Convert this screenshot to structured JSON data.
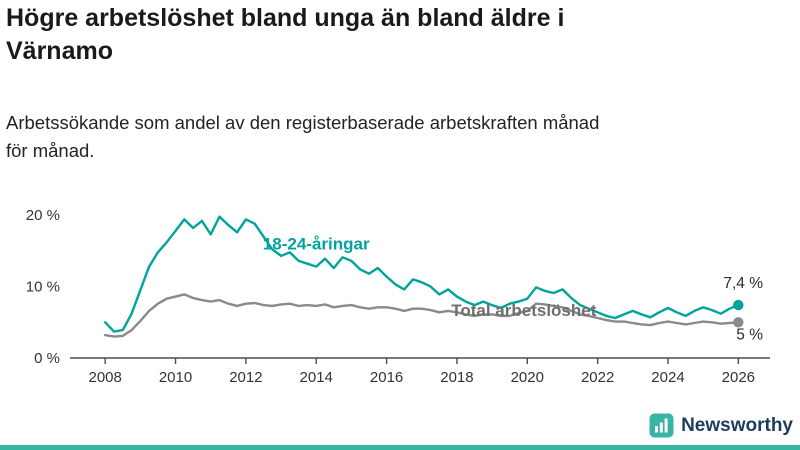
{
  "header": {
    "title_lines": [
      "Högre arbetslöshet bland unga än bland äldre i",
      "Värnamo"
    ],
    "subtitle_lines": [
      "Arbetssökande som andel av den registerbaserade arbetskraften månad",
      "för månad."
    ]
  },
  "theme": {
    "teal": "#00a49c",
    "logo_teal": "#35b5a2",
    "brand_navy": "#1e3d5c",
    "text_dark": "#1a1a1a"
  },
  "chart_data": {
    "type": "line",
    "title": "Högre arbetslöshet bland unga än bland äldre i Värnamo",
    "subtitle": "Arbetssökande som andel av den registerbaserade arbetskraften månad för månad.",
    "xlabel": "",
    "ylabel": "",
    "unit": "%",
    "grid": false,
    "legend_position": "inline",
    "x_start": 2008,
    "x_step": 0.25,
    "xlim": [
      2007.0,
      2026.9
    ],
    "ylim": [
      0,
      21
    ],
    "x_ticks": [
      2008,
      2010,
      2012,
      2014,
      2016,
      2018,
      2020,
      2022,
      2024,
      2026
    ],
    "y_ticks": [
      0,
      10,
      20
    ],
    "y_tick_suffix": " %",
    "axis_color": "#4d4d4d",
    "tick_label_color": "#333333",
    "end_label_color": "#2b2b2b",
    "series": [
      {
        "name": "18-24-åringar",
        "color": "#00a49c",
        "end_label": "7,4 %",
        "end_value": 7.4,
        "end_label_y": 9.8,
        "label_pos": {
          "x": 2014.0,
          "y": 15.2
        },
        "values": [
          5.0,
          3.7,
          3.9,
          6.2,
          9.5,
          12.8,
          14.8,
          16.2,
          17.8,
          19.4,
          18.2,
          19.2,
          17.3,
          19.8,
          18.6,
          17.6,
          19.4,
          18.8,
          17.0,
          15.2,
          14.3,
          14.8,
          13.6,
          13.2,
          12.8,
          13.9,
          12.6,
          14.1,
          13.6,
          12.4,
          11.8,
          12.6,
          11.4,
          10.3,
          9.6,
          11.0,
          10.6,
          10.0,
          8.9,
          9.6,
          8.6,
          7.9,
          7.4,
          7.9,
          7.4,
          7.0,
          7.6,
          7.9,
          8.3,
          9.9,
          9.4,
          9.1,
          9.6,
          8.4,
          7.4,
          6.9,
          6.4,
          5.9,
          5.6,
          6.1,
          6.6,
          6.1,
          5.7,
          6.4,
          7.0,
          6.4,
          5.9,
          6.6,
          7.1,
          6.7,
          6.2,
          6.9,
          7.4
        ]
      },
      {
        "name": "Total arbetslöshet",
        "color": "#8a8a8a",
        "label_color": "#6e6e6e",
        "end_label": "5 %",
        "end_value": 5.0,
        "end_label_y": 2.6,
        "label_pos": {
          "x": 2019.9,
          "y": 5.9
        },
        "values": [
          3.2,
          3.0,
          3.1,
          3.9,
          5.2,
          6.6,
          7.6,
          8.3,
          8.6,
          8.9,
          8.4,
          8.1,
          7.9,
          8.1,
          7.6,
          7.3,
          7.6,
          7.7,
          7.4,
          7.3,
          7.5,
          7.6,
          7.3,
          7.4,
          7.3,
          7.5,
          7.1,
          7.3,
          7.4,
          7.1,
          6.9,
          7.1,
          7.1,
          6.9,
          6.6,
          6.9,
          6.9,
          6.7,
          6.4,
          6.6,
          6.4,
          6.1,
          5.9,
          6.1,
          6.1,
          5.9,
          5.9,
          6.3,
          6.6,
          7.6,
          7.5,
          7.3,
          7.1,
          6.6,
          6.1,
          5.9,
          5.6,
          5.3,
          5.1,
          5.1,
          4.9,
          4.7,
          4.6,
          4.9,
          5.1,
          4.9,
          4.7,
          4.9,
          5.1,
          5.0,
          4.8,
          4.9,
          5.0
        ]
      }
    ]
  },
  "footer": {
    "brand": "Newsworthy"
  }
}
